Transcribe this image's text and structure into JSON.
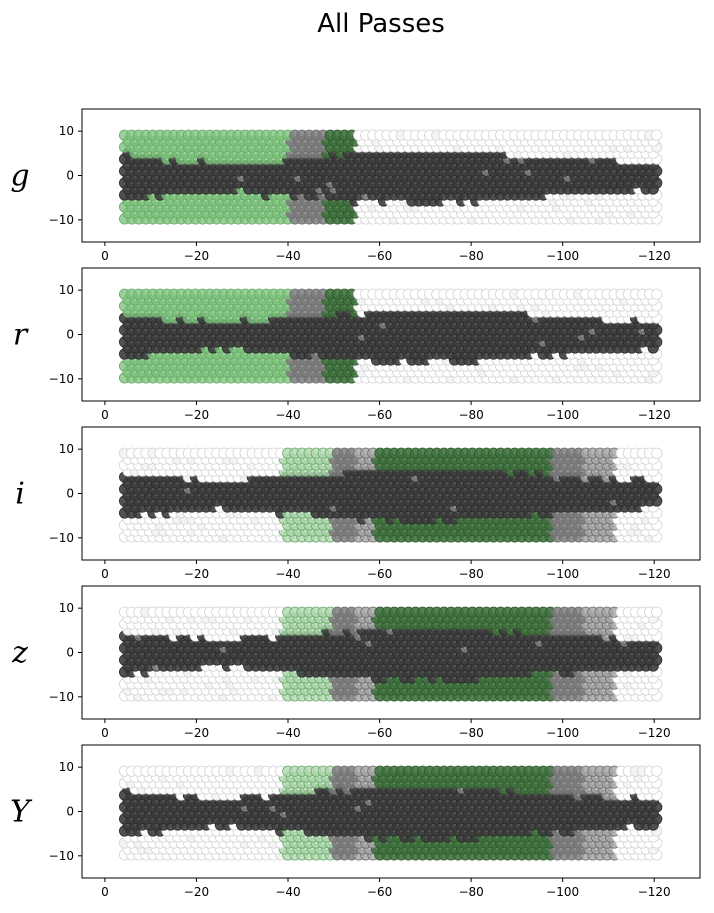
{
  "figure": {
    "title": "All Passes"
  },
  "colors": {
    "off": "#ffffff",
    "dark": "#3e3e3e",
    "mid_gray": "#7c7c7c",
    "light_gray": "#a8a8a8",
    "light_green": "#7ec47e",
    "pale_green": "#b3dab3",
    "dark_green": "#41723f",
    "edge": "#d4d4d4"
  },
  "chart_data": [
    {
      "type": "scatter",
      "band": "g",
      "title": "",
      "xlabel": "",
      "ylabel": "",
      "xlim": [
        5,
        -130
      ],
      "ylim": [
        -15,
        15
      ],
      "xticks": [
        "0",
        "−20",
        "−40",
        "−60",
        "−80",
        "−100",
        "−120"
      ],
      "yticks": [
        "10",
        "0",
        "−10"
      ],
      "grid": false,
      "regions": [
        {
          "from": 5,
          "to": -40,
          "outer": "light_green"
        },
        {
          "from": -40,
          "to": -48,
          "outer": "mid_gray"
        },
        {
          "from": -48,
          "to": -55,
          "outer": "dark_green"
        },
        {
          "from": -55,
          "to": -122,
          "outer": "off"
        }
      ]
    },
    {
      "type": "scatter",
      "band": "r",
      "title": "",
      "xlabel": "",
      "ylabel": "",
      "xlim": [
        5,
        -130
      ],
      "ylim": [
        -15,
        15
      ],
      "xticks": [
        "0",
        "−20",
        "−40",
        "−60",
        "−80",
        "−100",
        "−120"
      ],
      "yticks": [
        "10",
        "0",
        "−10"
      ],
      "grid": false,
      "regions": [
        {
          "from": 5,
          "to": -40,
          "outer": "light_green"
        },
        {
          "from": -40,
          "to": -48,
          "outer": "mid_gray"
        },
        {
          "from": -48,
          "to": -55,
          "outer": "dark_green"
        },
        {
          "from": -55,
          "to": -122,
          "outer": "off"
        }
      ]
    },
    {
      "type": "scatter",
      "band": "i",
      "title": "",
      "xlabel": "",
      "ylabel": "",
      "xlim": [
        5,
        -130
      ],
      "ylim": [
        -15,
        15
      ],
      "xticks": [
        "0",
        "−20",
        "−40",
        "−60",
        "−80",
        "−100",
        "−120"
      ],
      "yticks": [
        "10",
        "0",
        "−10"
      ],
      "grid": false,
      "regions": [
        {
          "from": 5,
          "to": -39,
          "outer": "off"
        },
        {
          "from": -39,
          "to": -50,
          "outer": "pale_green"
        },
        {
          "from": -50,
          "to": -55,
          "outer": "mid_gray"
        },
        {
          "from": -55,
          "to": -59,
          "outer": "light_gray"
        },
        {
          "from": -59,
          "to": -98,
          "outer": "dark_green"
        },
        {
          "from": -98,
          "to": -105,
          "outer": "mid_gray"
        },
        {
          "from": -105,
          "to": -112,
          "outer": "light_gray"
        },
        {
          "from": -112,
          "to": -122,
          "outer": "off"
        }
      ]
    },
    {
      "type": "scatter",
      "band": "z",
      "title": "",
      "xlabel": "",
      "ylabel": "",
      "xlim": [
        5,
        -130
      ],
      "ylim": [
        -15,
        15
      ],
      "xticks": [
        "0",
        "−20",
        "−40",
        "−60",
        "−80",
        "−100",
        "−120"
      ],
      "yticks": [
        "10",
        "0",
        "−10"
      ],
      "grid": false,
      "regions": [
        {
          "from": 5,
          "to": -39,
          "outer": "off"
        },
        {
          "from": -39,
          "to": -50,
          "outer": "pale_green"
        },
        {
          "from": -50,
          "to": -55,
          "outer": "mid_gray"
        },
        {
          "from": -55,
          "to": -59,
          "outer": "light_gray"
        },
        {
          "from": -59,
          "to": -98,
          "outer": "dark_green"
        },
        {
          "from": -98,
          "to": -105,
          "outer": "mid_gray"
        },
        {
          "from": -105,
          "to": -112,
          "outer": "light_gray"
        },
        {
          "from": -112,
          "to": -122,
          "outer": "off"
        }
      ]
    },
    {
      "type": "scatter",
      "band": "Y",
      "title": "",
      "xlabel": "",
      "ylabel": "",
      "xlim": [
        5,
        -130
      ],
      "ylim": [
        -15,
        15
      ],
      "xticks": [
        "0",
        "−20",
        "−40",
        "−60",
        "−80",
        "−100",
        "−120"
      ],
      "yticks": [
        "10",
        "0",
        "−10"
      ],
      "grid": false,
      "regions": [
        {
          "from": 5,
          "to": -39,
          "outer": "off"
        },
        {
          "from": -39,
          "to": -50,
          "outer": "pale_green"
        },
        {
          "from": -50,
          "to": -55,
          "outer": "mid_gray"
        },
        {
          "from": -55,
          "to": -59,
          "outer": "light_gray"
        },
        {
          "from": -59,
          "to": -98,
          "outer": "dark_green"
        },
        {
          "from": -98,
          "to": -105,
          "outer": "mid_gray"
        },
        {
          "from": -105,
          "to": -112,
          "outer": "light_gray"
        },
        {
          "from": -112,
          "to": -122,
          "outer": "off"
        }
      ]
    }
  ]
}
